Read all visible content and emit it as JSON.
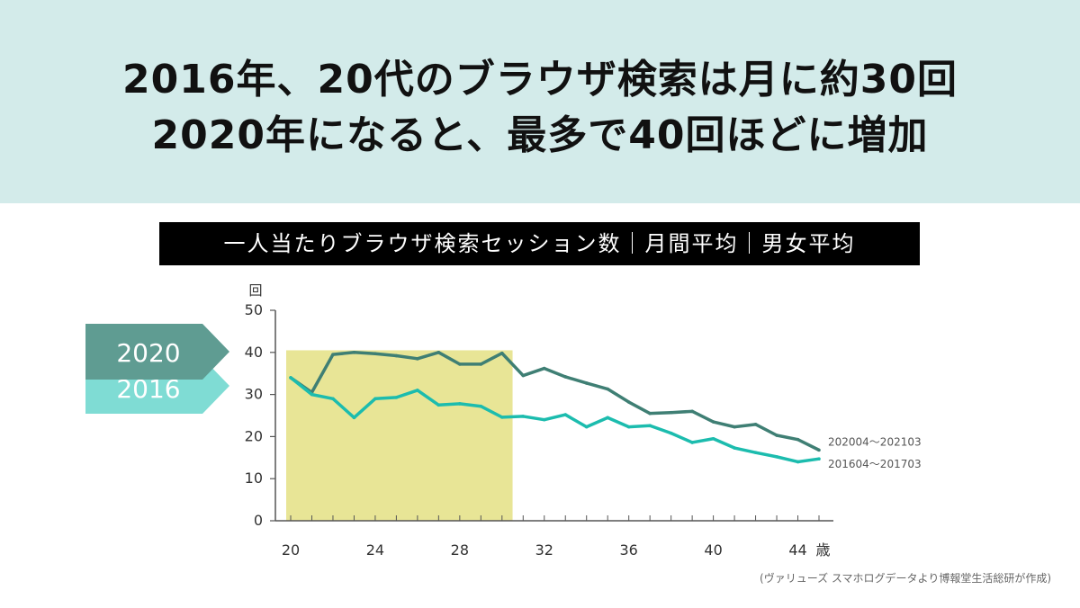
{
  "headline": {
    "line1": "2016年、20代のブラウザ検索は月に約30回",
    "line2": "2020年になると、最多で40回ほどに増加"
  },
  "source_note": "(ヴァリューズ スマホログデータより博報堂生活総研が作成)",
  "colors": {
    "header_bg": "#d3ebea",
    "series_2020": "#3f7f74",
    "series_2016": "#1cbcae",
    "highlight": "#e8e596",
    "badge_2020": "#5f9c92",
    "badge_2016": "#7fdcd4"
  },
  "chart_data": {
    "type": "line",
    "title": "一人当たりブラウザ検索セッション数｜月間平均｜男女平均",
    "ylabel": "回",
    "xlabel": "歳",
    "ylim": [
      0,
      50
    ],
    "yticks": [
      0,
      10,
      20,
      30,
      40,
      50
    ],
    "xlim": [
      20,
      45
    ],
    "xticks": [
      20,
      24,
      28,
      32,
      36,
      40,
      44
    ],
    "highlight_range": {
      "x": [
        20,
        30.5
      ],
      "y": [
        0,
        40.5
      ]
    },
    "badges": [
      "2020",
      "2016"
    ],
    "x": [
      20,
      21,
      22,
      23,
      24,
      25,
      26,
      27,
      28,
      29,
      30,
      31,
      32,
      33,
      34,
      35,
      36,
      37,
      38,
      39,
      40,
      41,
      42,
      43,
      44,
      45
    ],
    "series": [
      {
        "name": "202004～202103",
        "values": [
          34,
          30.5,
          39.5,
          40,
          39.7,
          39.2,
          38.5,
          40,
          37.2,
          37.2,
          39.8,
          34.5,
          36.2,
          34.2,
          32.7,
          31.3,
          28.2,
          25.5,
          25.7,
          26,
          23.5,
          22.3,
          22.9,
          20.3,
          19.3,
          16.8
        ]
      },
      {
        "name": "201604～201703",
        "values": [
          34,
          30,
          29,
          24.5,
          29,
          29.3,
          31,
          27.5,
          27.8,
          27.2,
          24.6,
          24.8,
          24,
          25.2,
          22.3,
          24.5,
          22.3,
          22.6,
          20.8,
          18.6,
          19.5,
          17.3,
          16.2,
          15.2,
          14,
          14.7
        ]
      }
    ]
  }
}
